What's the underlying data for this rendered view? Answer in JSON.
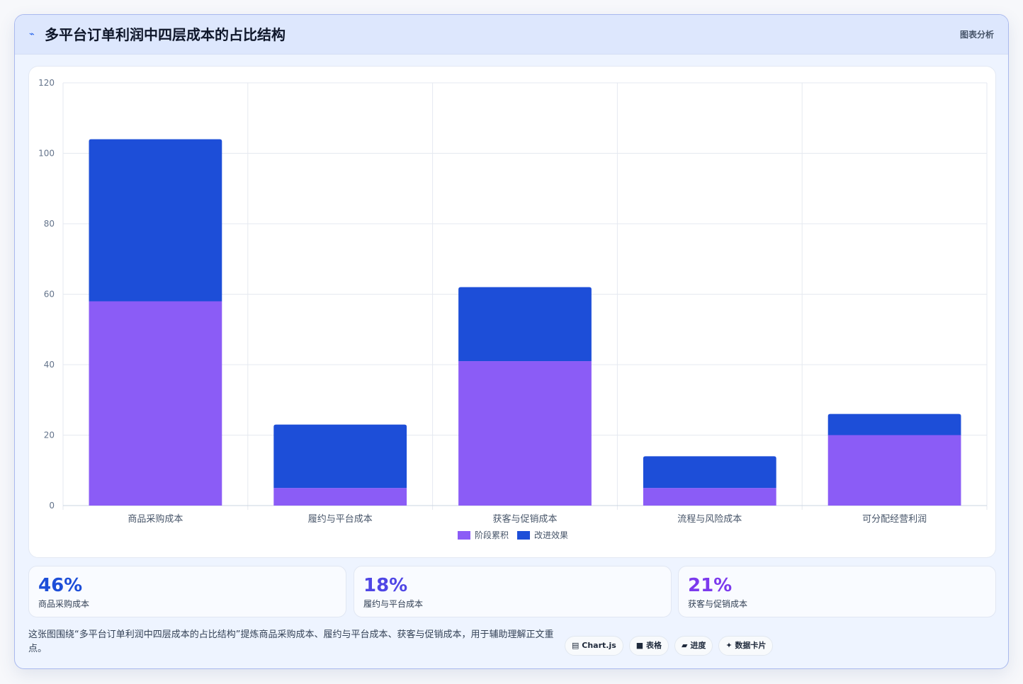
{
  "header": {
    "icon": "trend-line-icon",
    "title": "多平台订单利润中四层成本的占比结构",
    "right_label": "图表分析"
  },
  "colors": {
    "series_a": "#8b5cf6",
    "series_b": "#1d4ed8",
    "stat_1": "#1d4ed8",
    "stat_2": "#4f46e5",
    "stat_3": "#7c3aed"
  },
  "chart_data": {
    "type": "bar",
    "stacked": true,
    "categories": [
      "商品采购成本",
      "履约与平台成本",
      "获客与促销成本",
      "流程与风险成本",
      "可分配经营利润"
    ],
    "series": [
      {
        "name": "阶段累积",
        "values": [
          58,
          5,
          41,
          5,
          20
        ]
      },
      {
        "name": "改进效果",
        "values": [
          46,
          18,
          21,
          9,
          6
        ]
      }
    ],
    "ylim": [
      0,
      120
    ],
    "yticks": [
      0,
      20,
      40,
      60,
      80,
      100,
      120
    ],
    "grid": true,
    "legend": "bottom-center"
  },
  "stats": [
    {
      "value": "46%",
      "label": "商品采购成本"
    },
    {
      "value": "18%",
      "label": "履约与平台成本"
    },
    {
      "value": "21%",
      "label": "获客与促销成本"
    }
  ],
  "footer": {
    "description": "这张图围绕“多平台订单利润中四层成本的占比结构”提炼商品采购成本、履约与平台成本、获客与促销成本，用于辅助理解正文重点。",
    "tags": [
      {
        "icon": "chart-icon",
        "glyph": "▤",
        "label": "Chart.js"
      },
      {
        "icon": "table-icon",
        "glyph": "■",
        "label": "表格"
      },
      {
        "icon": "progress-icon",
        "glyph": "▰",
        "label": "进度"
      },
      {
        "icon": "card-icon",
        "glyph": "✦",
        "label": "数据卡片"
      }
    ]
  }
}
